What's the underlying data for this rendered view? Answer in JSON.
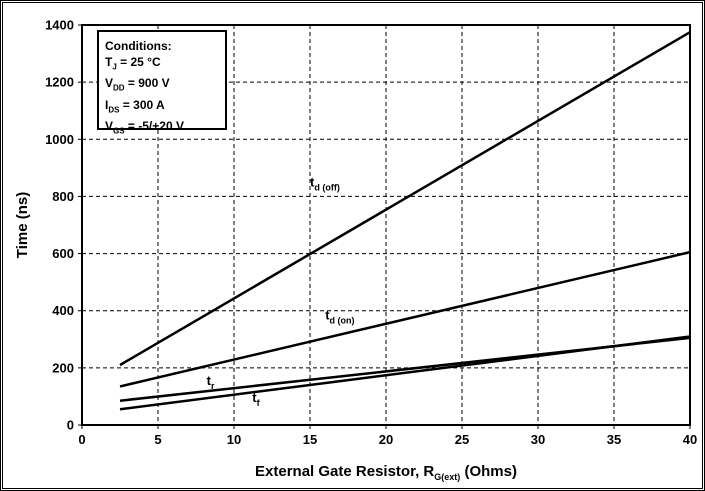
{
  "chart_data": {
    "type": "line",
    "xlabel": "External Gate Resistor, R",
    "xlabel_sub": "G(ext)",
    "xlabel_unit": " (Ohms)",
    "ylabel": "Time (ns)",
    "xlim": [
      0,
      40
    ],
    "ylim": [
      0,
      1400
    ],
    "xticks": [
      "0",
      "5",
      "10",
      "15",
      "20",
      "25",
      "30",
      "35",
      "40"
    ],
    "yticks": [
      "0",
      "200",
      "400",
      "600",
      "800",
      "1000",
      "1200",
      "1400"
    ],
    "grid": true,
    "series": [
      {
        "name": "t",
        "sub": "d (off)",
        "x": [
          2.5,
          40
        ],
        "y": [
          210,
          1375
        ],
        "label_at": [
          15,
          835
        ]
      },
      {
        "name": "t",
        "sub": "d (on)",
        "x": [
          2.5,
          40
        ],
        "y": [
          135,
          605
        ],
        "label_at": [
          16,
          370
        ]
      },
      {
        "name": "t",
        "sub": "r",
        "x": [
          2.5,
          40
        ],
        "y": [
          85,
          305
        ],
        "label_at": [
          8.2,
          140
        ]
      },
      {
        "name": "t",
        "sub": "f",
        "x": [
          2.5,
          40
        ],
        "y": [
          55,
          310
        ],
        "label_at": [
          11.2,
          80
        ]
      }
    ],
    "conditions": {
      "heading": "Conditions:",
      "lines": [
        {
          "sym": "T",
          "sub": "J",
          "rest": " = 25 °C"
        },
        {
          "sym": "V",
          "sub": "DD",
          "rest": " = 900 V"
        },
        {
          "sym": "I",
          "sub": "DS",
          "rest": " = 300 A"
        },
        {
          "sym": "V",
          "sub": "GS",
          "rest": " = -5/+20 V"
        }
      ]
    }
  }
}
